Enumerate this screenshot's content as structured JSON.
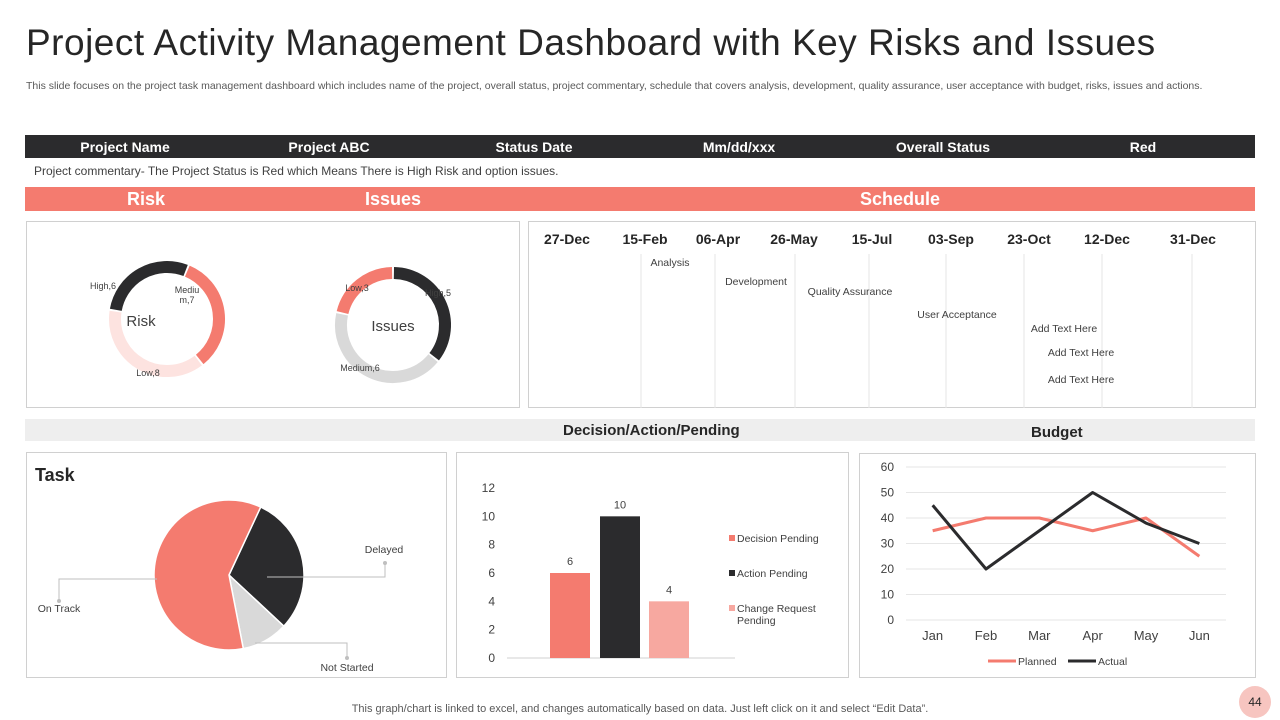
{
  "title": "Project Activity Management Dashboard with Key Risks and Issues",
  "subtitle": "This slide focuses on the project task management dashboard which includes name of the project, overall status, project commentary, schedule that covers analysis, development, quality assurance, user acceptance with budget, risks, issues and actions.",
  "info_bar": {
    "project_name_label": "Project Name",
    "project_name_value": "Project ABC",
    "status_date_label": "Status Date",
    "status_date_value": "Mm/dd/xxx",
    "overall_status_label": "Overall Status",
    "overall_status_value": "Red"
  },
  "commentary": "Project commentary- The  Project Status is Red which Means There  is High Risk and option issues.",
  "sections": {
    "risk": "Risk",
    "issues": "Issues",
    "schedule": "Schedule"
  },
  "decision_header": "Decision/Action/Pending",
  "budget_header": "Budget",
  "task_title": "Task",
  "schedule": {
    "dates": [
      "27-Dec",
      "15-Feb",
      "06-Apr",
      "26-May",
      "15-Jul",
      "03-Sep",
      "23-Oct",
      "12-Dec",
      "31-Dec"
    ],
    "items": [
      "Analysis",
      "Development",
      "Quality Assurance",
      "User Acceptance",
      "Add Text Here",
      "Add Text Here",
      "Add Text Here"
    ]
  },
  "colors": {
    "red": "#f47b6f",
    "dark": "#2b2b2d",
    "light_pink": "#fde3e0",
    "gray": "#d9d9d9",
    "pink": "#f7a8a0"
  },
  "chart_data": [
    {
      "type": "pie",
      "title": "Risk",
      "style": "doughnut",
      "labels": [
        "High,6",
        "Mediu m,7",
        "Low,8"
      ],
      "categories": [
        "High",
        "Medium",
        "Low"
      ],
      "values": [
        6,
        7,
        8
      ],
      "colors": [
        "#2b2b2d",
        "#f47b6f",
        "#fde3e0"
      ]
    },
    {
      "type": "pie",
      "title": "Issues",
      "style": "doughnut",
      "labels": [
        "High,5",
        "Medium,6",
        "Low,3"
      ],
      "categories": [
        "High",
        "Medium",
        "Low"
      ],
      "values": [
        5,
        6,
        3
      ],
      "colors": [
        "#2b2b2d",
        "#d9d9d9",
        "#f47b6f"
      ]
    },
    {
      "type": "pie",
      "title": "Task",
      "categories": [
        "Delayed",
        "Not Started",
        "On Track"
      ],
      "values": [
        30,
        10,
        60
      ],
      "colors": [
        "#2b2b2d",
        "#d9d9d9",
        "#f47b6f"
      ]
    },
    {
      "type": "bar",
      "categories": [
        "Decision Pending",
        "Action Pending",
        "Change Request Pending"
      ],
      "values": [
        6,
        10,
        4
      ],
      "data_labels": [
        "6",
        "10",
        "4"
      ],
      "colors": [
        "#f47b6f",
        "#2b2b2d",
        "#f7a8a0"
      ],
      "ylim": [
        0,
        12
      ],
      "yticks": [
        "0",
        "2",
        "4",
        "6",
        "8",
        "10",
        "12"
      ],
      "legend": [
        "Decision Pending",
        "Action Pending",
        "Change Request Pending"
      ]
    },
    {
      "type": "line",
      "categories": [
        "Jan",
        "Feb",
        "Mar",
        "Apr",
        "May",
        "Jun"
      ],
      "series": [
        {
          "name": "Planned",
          "values": [
            35,
            40,
            40,
            35,
            40,
            25
          ],
          "color": "#f47b6f"
        },
        {
          "name": "Actual",
          "values": [
            45,
            20,
            35,
            50,
            38,
            30
          ],
          "color": "#2b2b2d"
        }
      ],
      "ylim": [
        0,
        60
      ],
      "yticks": [
        "0",
        "10",
        "20",
        "30",
        "40",
        "50",
        "60"
      ],
      "legend_position": "bottom"
    }
  ],
  "footer": "This graph/chart is linked to excel,  and changes automatically based on data. Just left click on it and select “Edit Data”.",
  "page_number": "44"
}
